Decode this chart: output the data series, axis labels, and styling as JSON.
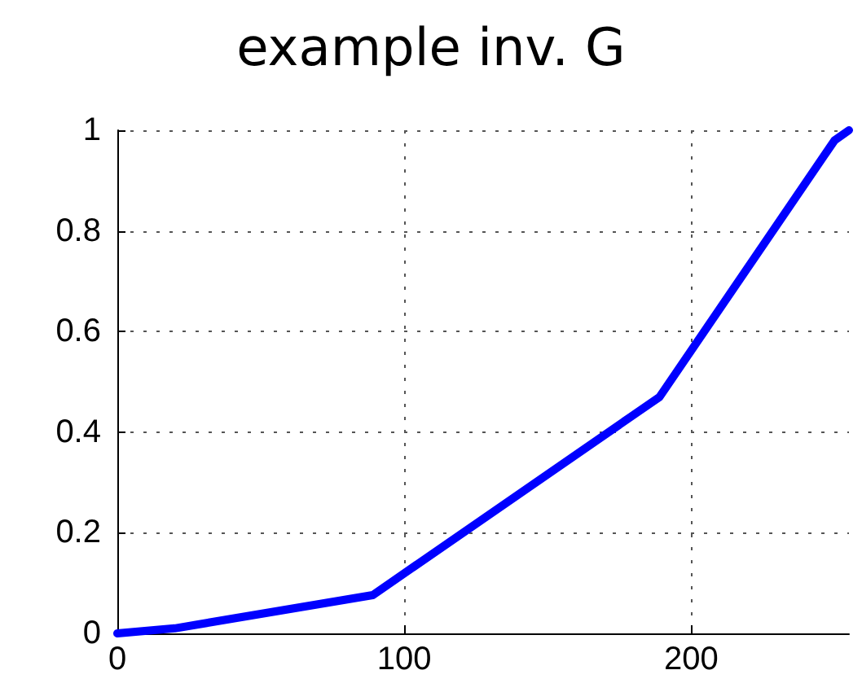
{
  "chart_data": {
    "type": "line",
    "title": "example inv. G",
    "x": [
      0,
      20,
      89,
      189,
      250,
      255
    ],
    "series": [
      {
        "color": "#0000ff",
        "values": [
          0,
          0.01,
          0.076,
          0.47,
          0.98,
          1
        ]
      }
    ],
    "xlim": [
      0,
      255
    ],
    "xticks": [
      0,
      100,
      200
    ],
    "ylim": [
      0,
      1
    ],
    "yticks": [
      0,
      0.2,
      0.4,
      0.6,
      0.8,
      1
    ],
    "grid": true,
    "marker": "none",
    "line_style": "solid"
  }
}
